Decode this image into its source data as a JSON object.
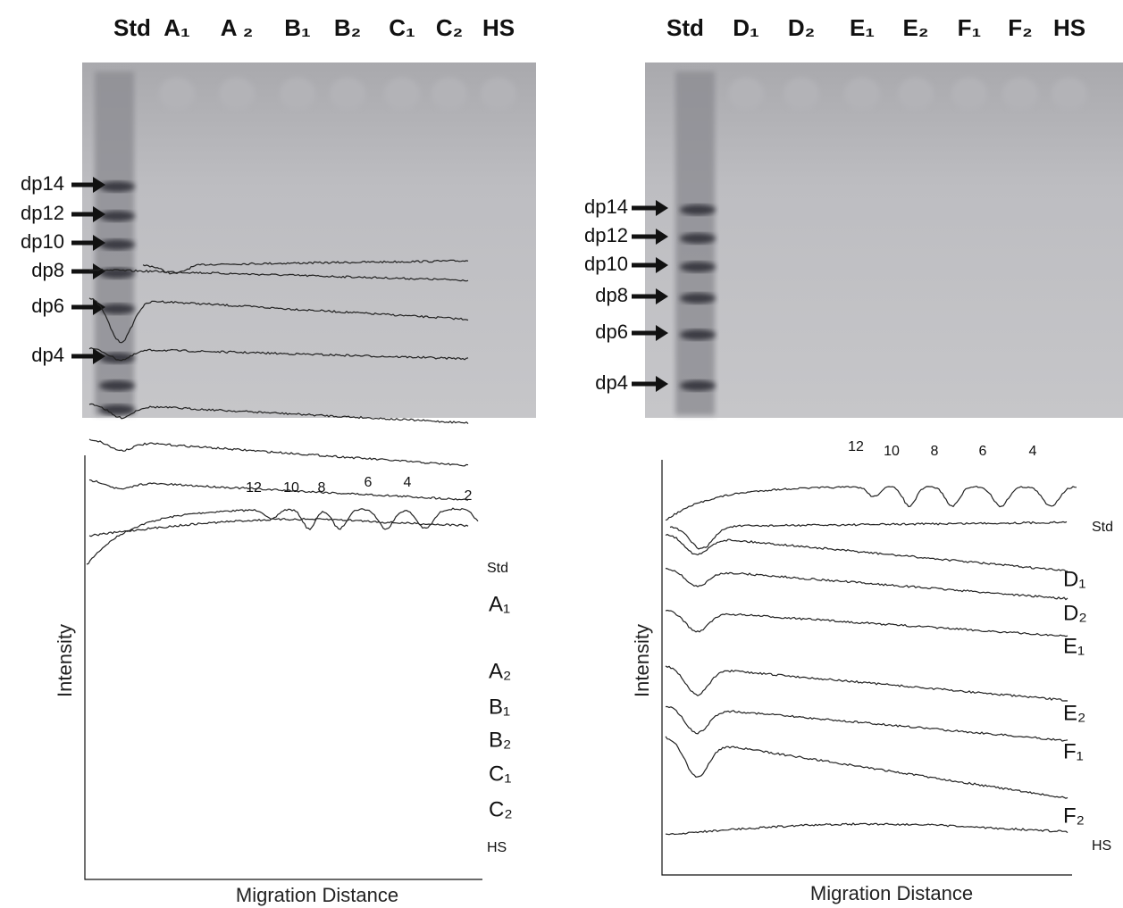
{
  "left": {
    "lanes": [
      "Std",
      "A₁",
      "A ₂",
      "B₁",
      "B₂",
      "C₁",
      "C₂",
      "HS"
    ],
    "dp_labels": [
      "dp14",
      "dp12",
      "dp10",
      "dp8",
      "dp6",
      "dp4"
    ],
    "peak_labels": [
      "12",
      "10",
      "8",
      "6",
      "4",
      "2"
    ],
    "trace_labels": [
      "Std",
      "A₁",
      "A₂",
      "B₁",
      "B₂",
      "C₁",
      "C₂",
      "HS"
    ],
    "y_label": "Intensity",
    "x_label": "Migration Distance"
  },
  "right": {
    "lanes": [
      "Std",
      "D₁",
      "D₂",
      "E₁",
      "E₂",
      "F₁",
      "F₂",
      "HS"
    ],
    "dp_labels": [
      "dp14",
      "dp12",
      "dp10",
      "dp8",
      "dp6",
      "dp4"
    ],
    "peak_labels": [
      "12",
      "10",
      "8",
      "6",
      "4"
    ],
    "trace_labels": [
      "Std",
      "D₁",
      "D₂",
      "E₁",
      "E₂",
      "F₁",
      "F₂",
      "HS"
    ],
    "y_label": "Intensity",
    "x_label": "Migration Distance"
  }
}
